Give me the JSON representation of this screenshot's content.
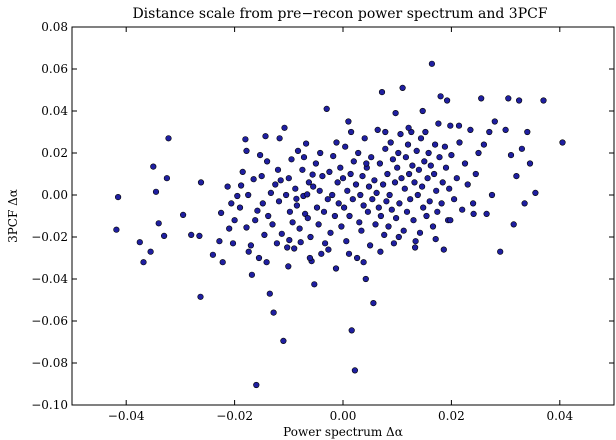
{
  "chart_data": {
    "type": "scatter",
    "title": "Distance  scale  from  pre−recon  power  spectrum  and  3PCF",
    "xlabel": "Power  spectrum  Δα",
    "ylabel": "3PCF  Δα",
    "xlim": [
      -0.05,
      0.05
    ],
    "ylim": [
      -0.1,
      0.08
    ],
    "x_ticks": [
      -0.04,
      -0.02,
      0.0,
      0.02,
      0.04
    ],
    "y_ticks": [
      -0.1,
      -0.08,
      -0.06,
      -0.04,
      -0.02,
      0.0,
      0.02,
      0.04,
      0.06,
      0.08
    ],
    "x_tick_labels": [
      "−0.04",
      "−0.02",
      "0.00",
      "0.02",
      "0.04"
    ],
    "y_tick_labels": [
      "−0.10",
      "−0.08",
      "−0.06",
      "−0.04",
      "−0.02",
      "0.00",
      "0.02",
      "0.04",
      "0.06",
      "0.08"
    ],
    "grid": false,
    "marker_color": "#1f1fa0",
    "marker_edge": "#000000",
    "points": [
      [
        -0.0415,
        -0.001
      ],
      [
        -0.0418,
        -0.0165
      ],
      [
        -0.0375,
        -0.0225
      ],
      [
        -0.0368,
        -0.032
      ],
      [
        -0.0355,
        -0.027
      ],
      [
        -0.035,
        0.0135
      ],
      [
        -0.0345,
        0.0015
      ],
      [
        -0.034,
        -0.0135
      ],
      [
        -0.033,
        -0.0195
      ],
      [
        -0.0322,
        0.027
      ],
      [
        -0.0325,
        0.008
      ],
      [
        -0.0295,
        -0.0095
      ],
      [
        -0.028,
        -0.019
      ],
      [
        -0.0265,
        -0.0195
      ],
      [
        -0.0262,
        0.006
      ],
      [
        -0.0263,
        -0.0485
      ],
      [
        -0.024,
        -0.0285
      ],
      [
        -0.0225,
        -0.0085
      ],
      [
        -0.0222,
        -0.032
      ],
      [
        -0.021,
        -0.016
      ],
      [
        -0.02,
        -0.012
      ],
      [
        -0.0195,
        -0.0005
      ],
      [
        -0.019,
        -0.006
      ],
      [
        -0.0188,
        0.0045
      ],
      [
        -0.0185,
        0.011
      ],
      [
        -0.018,
        0.0265
      ],
      [
        -0.0178,
        -0.0155
      ],
      [
        -0.0175,
        0.0
      ],
      [
        -0.017,
        -0.024
      ],
      [
        -0.0168,
        -0.038
      ],
      [
        -0.0165,
        0.0075
      ],
      [
        -0.0162,
        -0.012
      ],
      [
        -0.016,
        -0.0905
      ],
      [
        -0.0158,
        -0.0075
      ],
      [
        -0.0155,
        -0.03
      ],
      [
        -0.015,
        0.009
      ],
      [
        -0.0148,
        -0.004
      ],
      [
        -0.0145,
        -0.019
      ],
      [
        -0.0143,
        0.028
      ],
      [
        -0.014,
        0.016
      ],
      [
        -0.0138,
        -0.01
      ],
      [
        -0.0135,
        -0.047
      ],
      [
        -0.0133,
        0.001
      ],
      [
        -0.013,
        -0.014
      ],
      [
        -0.0128,
        -0.056
      ],
      [
        -0.0125,
        0.005
      ],
      [
        -0.0122,
        -0.023
      ],
      [
        -0.012,
        0.012
      ],
      [
        -0.0118,
        -0.003
      ],
      [
        -0.0115,
        0.007
      ],
      [
        -0.0113,
        -0.0185
      ],
      [
        -0.011,
        -0.0695
      ],
      [
        -0.0108,
        0.032
      ],
      [
        -0.0105,
        0.0
      ],
      [
        -0.0103,
        -0.025
      ],
      [
        -0.01,
        0.008
      ],
      [
        -0.0098,
        -0.008
      ],
      [
        -0.0095,
        0.017
      ],
      [
        -0.0093,
        -0.013
      ],
      [
        -0.009,
        -0.0255
      ],
      [
        -0.0088,
        0.003
      ],
      [
        -0.0085,
        -0.005
      ],
      [
        -0.0083,
        0.021
      ],
      [
        -0.008,
        -0.016
      ],
      [
        -0.0078,
        -0.0225
      ],
      [
        -0.0075,
        0.012
      ],
      [
        -0.0073,
        -0.0005
      ],
      [
        -0.007,
        -0.009
      ],
      [
        -0.0068,
        0.0245
      ],
      [
        -0.0065,
        -0.011
      ],
      [
        -0.0063,
        0.006
      ],
      [
        -0.006,
        -0.02
      ],
      [
        -0.0058,
        -0.0315
      ],
      [
        -0.0055,
        0.004
      ],
      [
        -0.0053,
        -0.0425
      ],
      [
        -0.005,
        0.015
      ],
      [
        -0.0048,
        -0.006
      ],
      [
        -0.0045,
        -0.014
      ],
      [
        -0.0043,
        0.002
      ],
      [
        -0.004,
        -0.028
      ],
      [
        -0.0038,
        0.009
      ],
      [
        -0.0035,
        -0.008
      ],
      [
        -0.0033,
        -0.023
      ],
      [
        -0.003,
        0.041
      ],
      [
        -0.0028,
        -0.002
      ],
      [
        -0.0025,
        0.011
      ],
      [
        -0.0023,
        -0.018
      ],
      [
        -0.002,
        0.0
      ],
      [
        -0.0018,
        0.0185
      ],
      [
        -0.0015,
        -0.01
      ],
      [
        -0.0013,
        -0.035
      ],
      [
        -0.001,
        0.006
      ],
      [
        -0.0008,
        -0.004
      ],
      [
        -0.0005,
        0.013
      ],
      [
        -0.0003,
        -0.015
      ],
      [
        0.0,
        0.008
      ],
      [
        0.0002,
        -0.006
      ],
      [
        0.0004,
        0.023
      ],
      [
        0.0006,
        -0.022
      ],
      [
        0.0008,
        0.002
      ],
      [
        0.001,
        0.035
      ],
      [
        0.0012,
        -0.01
      ],
      [
        0.0014,
        0.01
      ],
      [
        0.0016,
        -0.0645
      ],
      [
        0.0018,
        -0.002
      ],
      [
        0.002,
        0.016
      ],
      [
        0.0022,
        -0.0835
      ],
      [
        0.0024,
        0.005
      ],
      [
        0.0026,
        -0.03
      ],
      [
        0.0028,
        0.02
      ],
      [
        0.003,
        -0.013
      ],
      [
        0.0032,
        0.0
      ],
      [
        0.0034,
        -0.017
      ],
      [
        0.0036,
        0.009
      ],
      [
        0.0038,
        -0.005
      ],
      [
        0.004,
        0.027
      ],
      [
        0.0042,
        -0.04
      ],
      [
        0.0044,
        0.013
      ],
      [
        0.0046,
        -0.008
      ],
      [
        0.0048,
        0.004
      ],
      [
        0.005,
        -0.024
      ],
      [
        0.0052,
        0.018
      ],
      [
        0.0054,
        -0.002
      ],
      [
        0.0056,
        -0.0515
      ],
      [
        0.0058,
        0.007
      ],
      [
        0.006,
        -0.014
      ],
      [
        0.0062,
        0.001
      ],
      [
        0.0064,
        0.031
      ],
      [
        0.0066,
        -0.006
      ],
      [
        0.0068,
        0.015
      ],
      [
        0.007,
        -0.01
      ],
      [
        0.0072,
        0.049
      ],
      [
        0.0074,
        0.005
      ],
      [
        0.0076,
        -0.019
      ],
      [
        0.0078,
        0.022
      ],
      [
        0.008,
        -0.003
      ],
      [
        0.0082,
        0.01
      ],
      [
        0.0084,
        -0.015
      ],
      [
        0.0086,
        0.0
      ],
      [
        0.0088,
        0.025
      ],
      [
        0.009,
        -0.007
      ],
      [
        0.0092,
        0.017
      ],
      [
        0.0094,
        -0.023
      ],
      [
        0.0096,
        0.006
      ],
      [
        0.0098,
        -0.011
      ],
      [
        0.01,
        0.013
      ],
      [
        0.0102,
        0.02
      ],
      [
        0.0104,
        -0.004
      ],
      [
        0.0106,
        0.029
      ],
      [
        0.0108,
        0.008
      ],
      [
        0.011,
        0.051
      ],
      [
        0.0112,
        -0.017
      ],
      [
        0.0114,
        0.003
      ],
      [
        0.0116,
        0.018
      ],
      [
        0.0118,
        -0.008
      ],
      [
        0.012,
        0.024
      ],
      [
        0.0122,
        0.01
      ],
      [
        0.0124,
        -0.002
      ],
      [
        0.0126,
        0.03
      ],
      [
        0.0128,
        0.014
      ],
      [
        0.013,
        -0.012
      ],
      [
        0.0132,
        0.006
      ],
      [
        0.0134,
        -0.022
      ],
      [
        0.0136,
        0.021
      ],
      [
        0.0138,
        0.0
      ],
      [
        0.014,
        0.012
      ],
      [
        0.0142,
        -0.018
      ],
      [
        0.0144,
        0.027
      ],
      [
        0.0146,
        0.004
      ],
      [
        0.0148,
        -0.006
      ],
      [
        0.015,
        0.016
      ],
      [
        0.0152,
        0.03
      ],
      [
        0.0154,
        -0.01
      ],
      [
        0.0156,
        0.008
      ],
      [
        0.0158,
        0.02
      ],
      [
        0.016,
        -0.003
      ],
      [
        0.0162,
        0.014
      ],
      [
        0.0164,
        0.0625
      ],
      [
        0.0166,
        -0.015
      ],
      [
        0.0168,
        0.01
      ],
      [
        0.017,
        0.024
      ],
      [
        0.0172,
        0.002
      ],
      [
        0.0174,
        -0.008
      ],
      [
        0.0176,
        0.034
      ],
      [
        0.0178,
        0.018
      ],
      [
        0.018,
        0.047
      ],
      [
        0.0182,
        -0.004
      ],
      [
        0.0184,
        0.006
      ],
      [
        0.0186,
        -0.026
      ],
      [
        0.0188,
        0.023
      ],
      [
        0.019,
        0.013
      ],
      [
        0.0192,
        0.045
      ],
      [
        0.0194,
        -0.012
      ],
      [
        0.0196,
        0.003
      ],
      [
        0.0198,
        0.033
      ],
      [
        0.02,
        0.019
      ],
      [
        0.0205,
        -0.002
      ],
      [
        0.021,
        0.008
      ],
      [
        0.0215,
        0.025
      ],
      [
        0.022,
        -0.007
      ],
      [
        0.0225,
        0.015
      ],
      [
        0.023,
        0.005
      ],
      [
        0.0235,
        0.031
      ],
      [
        0.024,
        -0.004
      ],
      [
        0.0245,
        0.01
      ],
      [
        0.025,
        0.02
      ],
      [
        0.0255,
        0.046
      ],
      [
        0.026,
        0.024
      ],
      [
        0.0265,
        -0.009
      ],
      [
        0.027,
        0.03
      ],
      [
        0.0275,
        0.0
      ],
      [
        0.028,
        0.035
      ],
      [
        0.029,
        -0.027
      ],
      [
        0.03,
        0.031
      ],
      [
        0.0305,
        0.046
      ],
      [
        0.031,
        0.019
      ],
      [
        0.0315,
        -0.014
      ],
      [
        0.032,
        0.009
      ],
      [
        0.0325,
        0.045
      ],
      [
        0.033,
        0.022
      ],
      [
        0.0335,
        -0.004
      ],
      [
        0.034,
        0.03
      ],
      [
        0.0345,
        0.015
      ],
      [
        0.0355,
        0.001
      ],
      [
        0.037,
        0.045
      ],
      [
        0.0405,
        0.025
      ],
      [
        -0.0178,
        0.021
      ],
      [
        -0.0153,
        0.019
      ],
      [
        -0.0117,
        0.027
      ],
      [
        -0.0072,
        0.018
      ],
      [
        -0.0042,
        0.02
      ],
      [
        -0.0012,
        0.025
      ],
      [
        0.0015,
        0.03
      ],
      [
        0.0043,
        0.015
      ],
      [
        0.0078,
        0.03
      ],
      [
        0.0097,
        0.039
      ],
      [
        0.0121,
        0.032
      ],
      [
        0.0147,
        0.04
      ],
      [
        -0.0203,
        -0.023
      ],
      [
        -0.0174,
        -0.027
      ],
      [
        -0.0141,
        -0.032
      ],
      [
        -0.0101,
        -0.034
      ],
      [
        -0.0061,
        -0.03
      ],
      [
        -0.0027,
        -0.026
      ],
      [
        0.0011,
        -0.028
      ],
      [
        0.0038,
        -0.032
      ],
      [
        0.0069,
        -0.027
      ],
      [
        0.0103,
        -0.02
      ],
      [
        0.0133,
        -0.025
      ],
      [
        0.0171,
        -0.021
      ],
      [
        0.0198,
        -0.012
      ],
      [
        0.0241,
        -0.009
      ],
      [
        0.0214,
        0.033
      ],
      [
        -0.0228,
        -0.022
      ],
      [
        -0.0213,
        0.004
      ],
      [
        -0.0206,
        -0.004
      ],
      [
        -0.0099,
        -0.0215
      ],
      [
        -0.0086,
        -0.0018
      ],
      [
        -0.0066,
        0.0003
      ],
      [
        -0.0056,
        0.0097
      ]
    ]
  }
}
